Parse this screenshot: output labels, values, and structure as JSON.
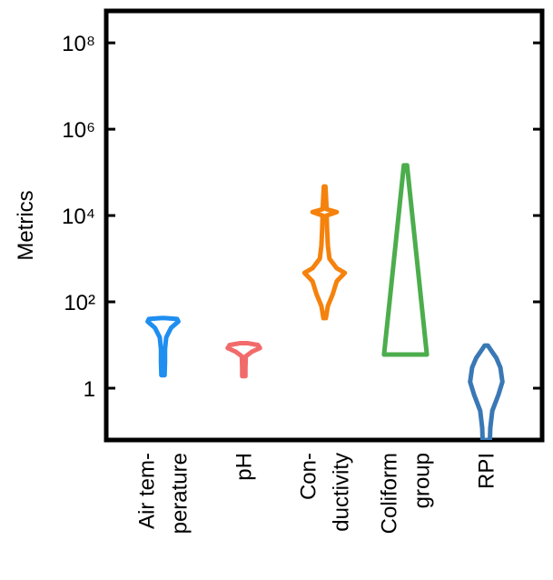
{
  "chart_data": {
    "type": "violin",
    "ylabel": "Metrics",
    "yscale": "log",
    "categories": [
      [
        "Air tem-",
        "perature"
      ],
      [
        "pH"
      ],
      [
        "Con-",
        "ductivity"
      ],
      [
        "Coliform",
        "group"
      ],
      [
        "RPI"
      ]
    ],
    "series": [
      {
        "color": "#1f8ef1",
        "values": [
          42,
          40,
          35,
          25,
          15,
          8,
          4,
          2
        ],
        "density": [
          0.05,
          0.35,
          0.38,
          0.2,
          0.08,
          0.05,
          0.05,
          0.04
        ]
      },
      {
        "color": "#f26b6b",
        "values": [
          11,
          10,
          8.5,
          7,
          5.5,
          3,
          1.9
        ],
        "density": [
          0.1,
          0.35,
          0.4,
          0.2,
          0.05,
          0.04,
          0.04
        ]
      },
      {
        "color": "#f5820d",
        "values": [
          47000,
          14000,
          12000,
          10000,
          5000,
          2000,
          1000,
          600,
          470,
          300,
          150,
          80,
          42
        ],
        "density": [
          0.02,
          0.05,
          0.3,
          0.05,
          0.06,
          0.08,
          0.12,
          0.3,
          0.5,
          0.3,
          0.2,
          0.08,
          0.03
        ]
      },
      {
        "color": "#4cad4c",
        "values": [
          145000,
          6
        ],
        "density": [
          0.04,
          0.53
        ]
      },
      {
        "color": "#3a78b5",
        "values": [
          9.7,
          8,
          5,
          3,
          1.4,
          0.7,
          0.3,
          0.12,
          0.063
        ],
        "density": [
          0.04,
          0.1,
          0.25,
          0.35,
          0.4,
          0.3,
          0.15,
          0.1,
          0.09
        ]
      }
    ],
    "ylim": [
      0.063,
      550000000
    ],
    "yticks": [
      1,
      {
        "value": 100,
        "label": "10²"
      },
      {
        "value": 10000,
        "label": "10⁴"
      },
      {
        "value": 1000000,
        "label": "10⁶"
      },
      {
        "value": 100000000,
        "label": "10⁸"
      }
    ]
  }
}
